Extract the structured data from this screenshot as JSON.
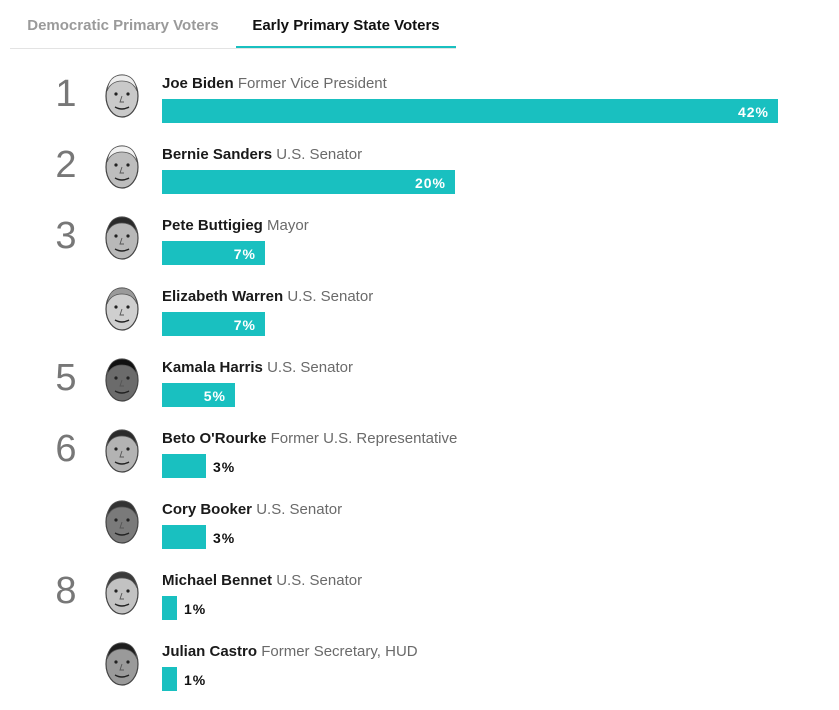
{
  "tabs": [
    {
      "label": "Democratic Primary Voters",
      "active": false
    },
    {
      "label": "Early Primary State Voters",
      "active": true
    }
  ],
  "colors": {
    "accent": "#19c0c0",
    "rank": "#777777",
    "title": "#6a6a6a"
  },
  "chart_data": {
    "type": "bar",
    "orientation": "horizontal",
    "value_unit": "%",
    "xlim": [
      0,
      42
    ],
    "candidates": [
      {
        "rank": "1",
        "name": "Joe Biden",
        "title": "Former Vice President",
        "value": 42,
        "label": "42%",
        "icon": "joe-biden-portrait-icon"
      },
      {
        "rank": "2",
        "name": "Bernie Sanders",
        "title": "U.S. Senator",
        "value": 20,
        "label": "20%",
        "icon": "bernie-sanders-portrait-icon"
      },
      {
        "rank": "3",
        "name": "Pete Buttigieg",
        "title": "Mayor",
        "value": 7,
        "label": "7%",
        "icon": "pete-buttigieg-portrait-icon"
      },
      {
        "rank": "",
        "name": "Elizabeth Warren",
        "title": "U.S. Senator",
        "value": 7,
        "label": "7%",
        "icon": "elizabeth-warren-portrait-icon"
      },
      {
        "rank": "5",
        "name": "Kamala Harris",
        "title": "U.S. Senator",
        "value": 5,
        "label": "5%",
        "icon": "kamala-harris-portrait-icon"
      },
      {
        "rank": "6",
        "name": "Beto O'Rourke",
        "title": "Former U.S. Representative",
        "value": 3,
        "label": "3%",
        "icon": "beto-orourke-portrait-icon"
      },
      {
        "rank": "",
        "name": "Cory Booker",
        "title": "U.S. Senator",
        "value": 3,
        "label": "3%",
        "icon": "cory-booker-portrait-icon"
      },
      {
        "rank": "8",
        "name": "Michael Bennet",
        "title": "U.S. Senator",
        "value": 1,
        "label": "1%",
        "icon": "michael-bennet-portrait-icon"
      },
      {
        "rank": "",
        "name": "Julian Castro",
        "title": "Former Secretary, HUD",
        "value": 1,
        "label": "1%",
        "icon": "julian-castro-portrait-icon"
      }
    ]
  }
}
